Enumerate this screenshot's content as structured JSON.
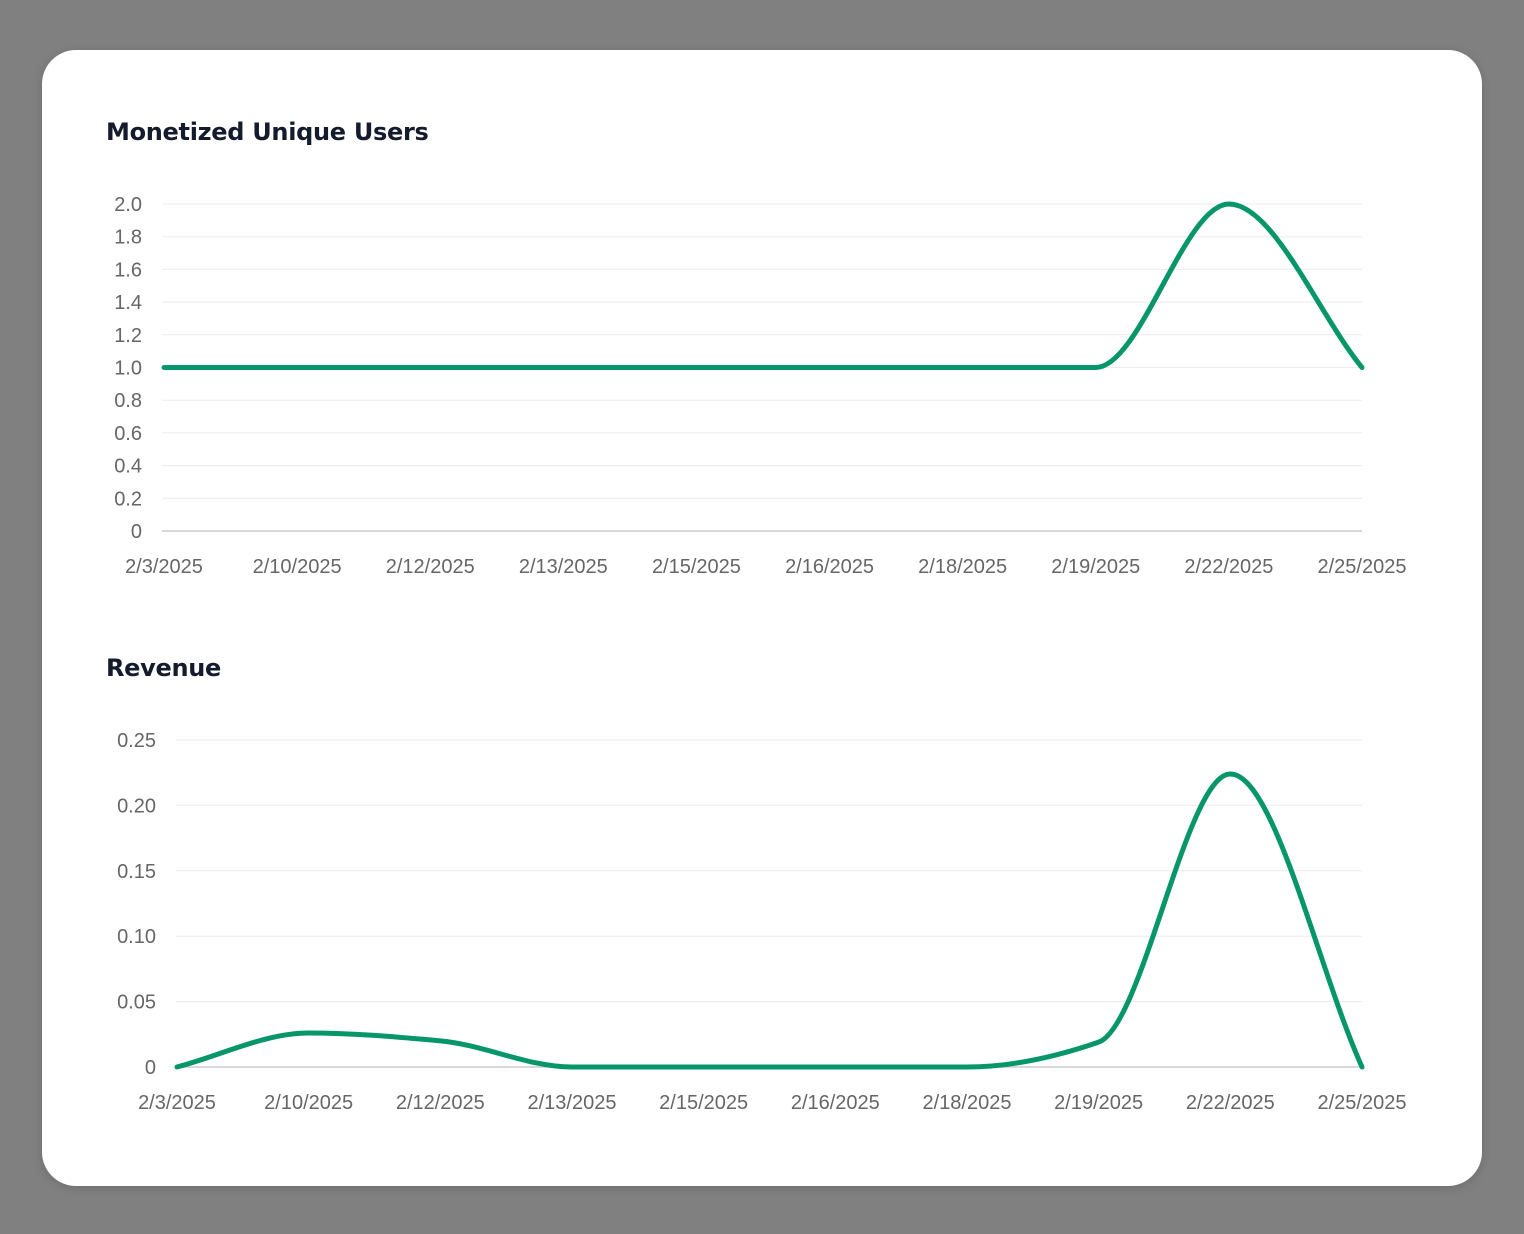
{
  "colors": {
    "line": "#079669",
    "background": "#808080",
    "card": "#ffffff"
  },
  "chart_data": [
    {
      "type": "line",
      "title": "Monetized Unique Users",
      "categories": [
        "2/3/2025",
        "2/10/2025",
        "2/12/2025",
        "2/13/2025",
        "2/15/2025",
        "2/16/2025",
        "2/18/2025",
        "2/19/2025",
        "2/22/2025",
        "2/25/2025"
      ],
      "values": [
        1,
        1,
        1,
        1,
        1,
        1,
        1,
        1,
        2,
        1
      ],
      "yticks": [
        "0",
        "0.2",
        "0.4",
        "0.6",
        "0.8",
        "1.0",
        "1.2",
        "1.4",
        "1.6",
        "1.8",
        "2.0"
      ],
      "ylim": [
        0,
        2.0
      ],
      "grid": true
    },
    {
      "type": "line",
      "title": "Revenue",
      "categories": [
        "2/3/2025",
        "2/10/2025",
        "2/12/2025",
        "2/13/2025",
        "2/15/2025",
        "2/16/2025",
        "2/18/2025",
        "2/19/2025",
        "2/22/2025",
        "2/25/2025"
      ],
      "values": [
        0,
        0.026,
        0.02,
        0,
        0,
        0,
        0,
        0.019,
        0.224,
        0
      ],
      "yticks": [
        "0",
        "0.05",
        "0.10",
        "0.15",
        "0.20",
        "0.25"
      ],
      "ylim": [
        0,
        0.25
      ],
      "grid": true
    }
  ]
}
